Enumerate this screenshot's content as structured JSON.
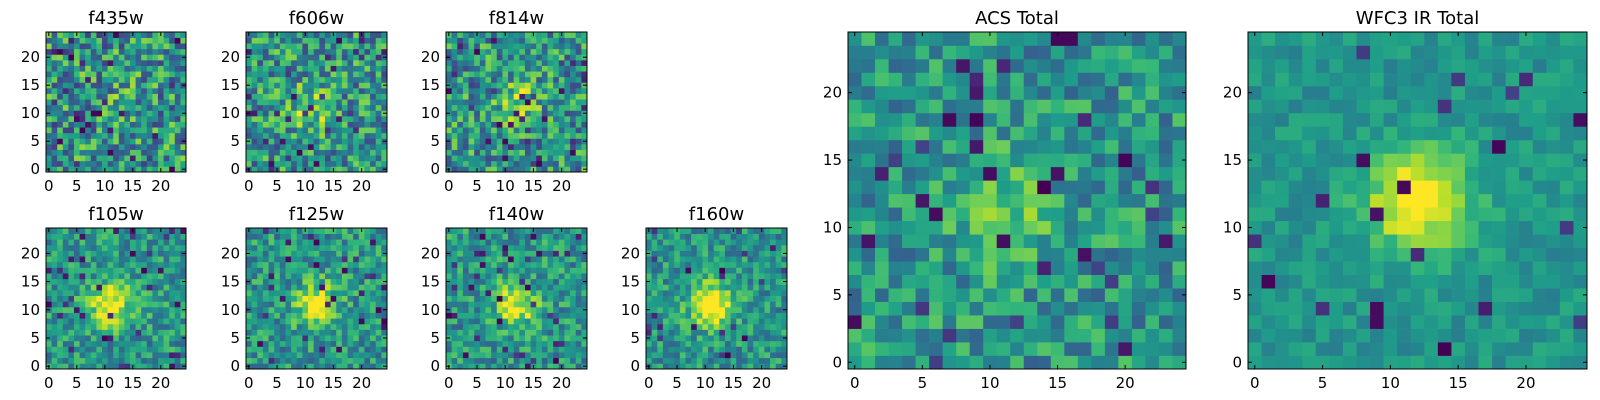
{
  "chart_data": [
    {
      "type": "heatmap",
      "title": "f435w",
      "xlim": [
        0,
        24
      ],
      "ylim": [
        0,
        24
      ],
      "grid": 25,
      "xticks": [
        0,
        5,
        10,
        15,
        20
      ],
      "yticks": [
        0,
        5,
        10,
        15,
        20
      ],
      "colormap": "viridis",
      "structure": "noise-dominated, mostly green-yellow with scattered dark pixels",
      "center": [
        12,
        12
      ],
      "seed": 11,
      "core": 0.05,
      "noise": 0.33,
      "darkfrac": 0.05
    },
    {
      "type": "heatmap",
      "title": "f606w",
      "xlim": [
        0,
        24
      ],
      "ylim": [
        0,
        24
      ],
      "grid": 25,
      "xticks": [
        0,
        5,
        10,
        15,
        20
      ],
      "yticks": [
        0,
        5,
        10,
        15,
        20
      ],
      "colormap": "viridis",
      "structure": "faint central source near (11, 11) in noise",
      "center": [
        11,
        11
      ],
      "seed": 23,
      "core": 0.3,
      "noise": 0.3,
      "darkfrac": 0.05
    },
    {
      "type": "heatmap",
      "title": "f814w",
      "xlim": [
        0,
        24
      ],
      "ylim": [
        0,
        24
      ],
      "grid": 25,
      "xticks": [
        0,
        5,
        10,
        15,
        20
      ],
      "yticks": [
        0,
        5,
        10,
        15,
        20
      ],
      "colormap": "viridis",
      "structure": "faint central source near (12, 12) in noise",
      "center": [
        12,
        12
      ],
      "seed": 37,
      "core": 0.3,
      "noise": 0.3,
      "darkfrac": 0.05
    },
    {
      "type": "heatmap",
      "title": "f105w",
      "xlim": [
        0,
        24
      ],
      "ylim": [
        0,
        24
      ],
      "grid": 25,
      "xticks": [
        0,
        5,
        10,
        15,
        20
      ],
      "yticks": [
        0,
        5,
        10,
        15,
        20
      ],
      "colormap": "viridis",
      "structure": "bright central source near (11, 11) on teal background",
      "center": [
        11,
        11
      ],
      "seed": 41,
      "core": 0.55,
      "noise": 0.22,
      "darkfrac": 0.05
    },
    {
      "type": "heatmap",
      "title": "f125w",
      "xlim": [
        0,
        24
      ],
      "ylim": [
        0,
        24
      ],
      "grid": 25,
      "xticks": [
        0,
        5,
        10,
        15,
        20
      ],
      "yticks": [
        0,
        5,
        10,
        15,
        20
      ],
      "colormap": "viridis",
      "structure": "extended central source near (12, 11)",
      "center": [
        12,
        11
      ],
      "seed": 53,
      "core": 0.5,
      "noise": 0.22,
      "darkfrac": 0.05
    },
    {
      "type": "heatmap",
      "title": "f140w",
      "xlim": [
        0,
        24
      ],
      "ylim": [
        0,
        24
      ],
      "grid": 25,
      "xticks": [
        0,
        5,
        10,
        15,
        20
      ],
      "yticks": [
        0,
        5,
        10,
        15,
        20
      ],
      "colormap": "viridis",
      "structure": "extended central source near (12, 11)",
      "center": [
        12,
        11
      ],
      "seed": 67,
      "core": 0.48,
      "noise": 0.22,
      "darkfrac": 0.05
    },
    {
      "type": "heatmap",
      "title": "f160w",
      "xlim": [
        0,
        24
      ],
      "ylim": [
        0,
        24
      ],
      "grid": 25,
      "xticks": [
        0,
        5,
        10,
        15,
        20
      ],
      "yticks": [
        0,
        5,
        10,
        15,
        20
      ],
      "colormap": "viridis",
      "structure": "bright compact central source near (11, 11)",
      "center": [
        11,
        11
      ],
      "seed": 79,
      "core": 0.6,
      "noise": 0.2,
      "darkfrac": 0.05
    },
    {
      "type": "heatmap",
      "title": "ACS Total",
      "xlim": [
        0,
        24
      ],
      "ylim": [
        0,
        24
      ],
      "grid": 25,
      "xticks": [
        0,
        5,
        10,
        15,
        20
      ],
      "yticks": [
        0,
        5,
        10,
        15,
        20
      ],
      "colormap": "viridis",
      "structure": "faint source near (11, 11), noisy green background",
      "center": [
        11,
        11
      ],
      "seed": 97,
      "core": 0.3,
      "noise": 0.22,
      "darkfrac": 0.06
    },
    {
      "type": "heatmap",
      "title": "WFC3 IR Total",
      "xlim": [
        0,
        24
      ],
      "ylim": [
        0,
        24
      ],
      "grid": 25,
      "xticks": [
        0,
        5,
        10,
        15,
        20
      ],
      "yticks": [
        0,
        5,
        10,
        15,
        20
      ],
      "colormap": "viridis",
      "structure": "bright source near (12, 12) on smooth teal background",
      "center": [
        12,
        12
      ],
      "seed": 113,
      "core": 0.55,
      "noise": 0.1,
      "darkfrac": 0.04
    }
  ]
}
